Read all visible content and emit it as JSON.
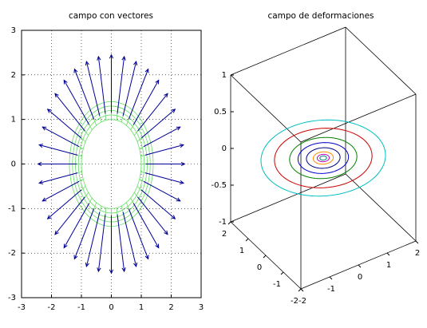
{
  "chart_data": [
    {
      "type": "quiver",
      "title": "campo con vectores",
      "xlim": [
        -3,
        3
      ],
      "ylim": [
        -3,
        3
      ],
      "xticks": [
        -3,
        -2,
        -1,
        0,
        1,
        2,
        3
      ],
      "yticks": [
        -3,
        -2,
        -1,
        0,
        1,
        2,
        3
      ],
      "grid": true,
      "arrow_color": "#000099",
      "mesh_color": "#66dd66",
      "mesh_radii": [
        1,
        1.1,
        1.2,
        1.3,
        1.4
      ],
      "x": [
        1.15,
        1.13,
        1.08,
        1,
        0.88,
        0.74,
        0.58,
        0.39,
        0.2,
        0,
        -0.2,
        -0.39,
        -0.58,
        -0.74,
        -0.88,
        -1,
        -1.08,
        -1.13,
        -1.15,
        -1.13,
        -1.08,
        -1,
        -0.88,
        -0.74,
        -0.58,
        -0.39,
        -0.2,
        0,
        0.2,
        0.39,
        0.58,
        0.74,
        0.88,
        1,
        1.08,
        1.13
      ],
      "y": [
        0,
        0.2,
        0.39,
        0.58,
        0.74,
        0.88,
        1,
        1.08,
        1.13,
        1.15,
        1.13,
        1.08,
        1,
        0.88,
        0.74,
        0.58,
        0.39,
        0.2,
        0,
        -0.2,
        -0.39,
        -0.58,
        -0.74,
        -0.88,
        -1,
        -1.08,
        -1.13,
        -1.15,
        -1.13,
        -1.08,
        -1,
        -0.88,
        -0.74,
        -0.58,
        -0.39,
        -0.2
      ],
      "u": [
        1.3,
        1.28,
        1.22,
        1.13,
        1,
        0.84,
        0.65,
        0.44,
        0.23,
        0,
        -0.23,
        -0.44,
        -0.65,
        -0.84,
        -1,
        -1.13,
        -1.22,
        -1.28,
        -1.3,
        -1.28,
        -1.22,
        -1.13,
        -1,
        -0.84,
        -0.65,
        -0.44,
        -0.23,
        0,
        0.23,
        0.44,
        0.65,
        0.84,
        1,
        1.13,
        1.22,
        1.28
      ],
      "v": [
        0,
        0.23,
        0.44,
        0.65,
        0.84,
        1,
        1.13,
        1.22,
        1.28,
        1.3,
        1.28,
        1.22,
        1.13,
        1,
        0.84,
        0.65,
        0.44,
        0.23,
        0,
        -0.23,
        -0.44,
        -0.65,
        -0.84,
        -1,
        -1.13,
        -1.22,
        -1.28,
        -1.3,
        -1.28,
        -1.22,
        -1.13,
        -1,
        -0.84,
        -0.65,
        -0.44,
        -0.23
      ]
    },
    {
      "type": "contour3d",
      "title": "campo de deformaciones",
      "xlim": [
        -2,
        2
      ],
      "ylim": [
        -2,
        2
      ],
      "zlim": [
        -1,
        1
      ],
      "xticks": [
        -2,
        -1,
        0,
        1,
        2
      ],
      "yticks": [
        -2,
        -1,
        0,
        1,
        2
      ],
      "zticks": [
        -1,
        -0.5,
        0,
        0.5,
        1
      ],
      "contour_z": 0,
      "contours": [
        {
          "radius": 1.85,
          "color": "#00bfbf"
        },
        {
          "radius": 1.45,
          "color": "#cc0000"
        },
        {
          "radius": 1.0,
          "color": "#008000"
        },
        {
          "radius": 0.75,
          "color": "#0000cc"
        },
        {
          "radius": 0.5,
          "color": "#000080"
        },
        {
          "radius": 0.3,
          "color": "#ff8c00"
        },
        {
          "radius": 0.18,
          "color": "#bf00bf"
        },
        {
          "radius": 0.1,
          "color": "#007f7f"
        }
      ]
    }
  ]
}
